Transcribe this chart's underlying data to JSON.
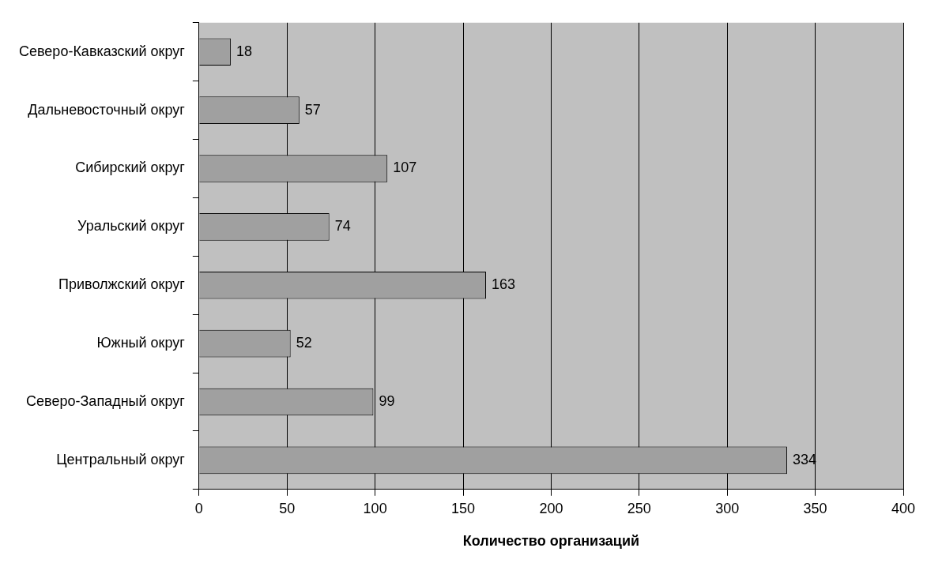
{
  "chart_data": {
    "type": "bar",
    "orientation": "horizontal",
    "xlabel": "Количество организаций",
    "categories": [
      "Северо-Кавказский округ",
      "Дальневосточный округ",
      "Сибирский округ",
      "Уральский округ",
      "Приволжский округ",
      "Южный округ",
      "Северо-Западный округ",
      "Центральный округ"
    ],
    "values": [
      18,
      57,
      107,
      74,
      163,
      52,
      99,
      334
    ],
    "color": "#a0a0a0",
    "xlim": [
      0,
      400
    ],
    "xticks": [
      0,
      50,
      100,
      150,
      200,
      250,
      300,
      350,
      400
    ],
    "grid": "x",
    "data_labels": true,
    "legend": false
  }
}
